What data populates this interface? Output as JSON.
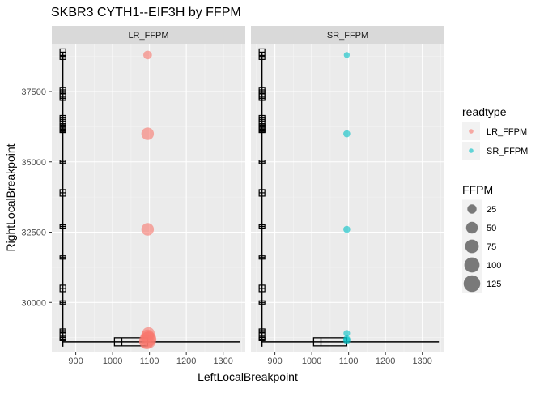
{
  "chart_data": {
    "type": "scatter",
    "title": "SKBR3 CYTH1--EIF3H by FFPM",
    "xlabel": "LeftLocalBreakpoint",
    "ylabel": "RightLocalBreakpoint",
    "xlim": [
      835,
      1360
    ],
    "ylim": [
      28250,
      39200
    ],
    "x_ticks": [
      900,
      1000,
      1100,
      1200,
      1300
    ],
    "y_ticks": [
      30000,
      32500,
      35000,
      37500
    ],
    "x_tick_labels": [
      "900",
      "1000",
      "1100",
      "1200",
      "1300"
    ],
    "y_tick_labels": [
      "30000",
      "32500",
      "35000",
      "37500"
    ],
    "grid": true,
    "facets": [
      {
        "label": "LR_FFPM",
        "color": "#F8766D",
        "points": [
          {
            "x": 1095,
            "y": 38800,
            "ffpm": 20
          },
          {
            "x": 1095,
            "y": 36000,
            "ffpm": 60
          },
          {
            "x": 1095,
            "y": 32600,
            "ffpm": 60
          },
          {
            "x": 1097,
            "y": 28900,
            "ffpm": 60
          },
          {
            "x": 1095,
            "y": 28800,
            "ffpm": 70
          },
          {
            "x": 1098,
            "y": 28700,
            "ffpm": 100
          },
          {
            "x": 1095,
            "y": 28650,
            "ffpm": 130
          },
          {
            "x": 1092,
            "y": 28600,
            "ffpm": 90
          }
        ]
      },
      {
        "label": "SR_FFPM",
        "color": "#00BFC4",
        "points": [
          {
            "x": 1095,
            "y": 38800,
            "ffpm": 5
          },
          {
            "x": 1095,
            "y": 36000,
            "ffpm": 10
          },
          {
            "x": 1095,
            "y": 32600,
            "ffpm": 10
          },
          {
            "x": 1095,
            "y": 28900,
            "ffpm": 8
          },
          {
            "x": 1095,
            "y": 28700,
            "ffpm": 10
          },
          {
            "x": 1095,
            "y": 28650,
            "ffpm": 12
          }
        ]
      }
    ],
    "boxplots": {
      "vertical": {
        "x": 865,
        "ys": [
          38900,
          38700,
          37500,
          37300,
          36500,
          36300,
          36200,
          36100,
          35000,
          33900,
          32700,
          31600,
          30500,
          30000,
          29000,
          28800,
          28700
        ]
      },
      "horizontal": {
        "y": 28600,
        "xmin": 862,
        "q1": 1005,
        "median": 1025,
        "q3": 1095,
        "xmax": 1345
      }
    },
    "legend": {
      "placement": "right",
      "color_title": "readtype",
      "color_items": [
        {
          "label": "LR_FFPM",
          "color": "#F8766D"
        },
        {
          "label": "SR_FFPM",
          "color": "#00BFC4"
        }
      ],
      "size_title": "FFPM",
      "size_items": [
        25,
        50,
        75,
        100,
        125
      ],
      "size_labels": [
        "25",
        "50",
        "75",
        "100",
        "125"
      ]
    }
  }
}
